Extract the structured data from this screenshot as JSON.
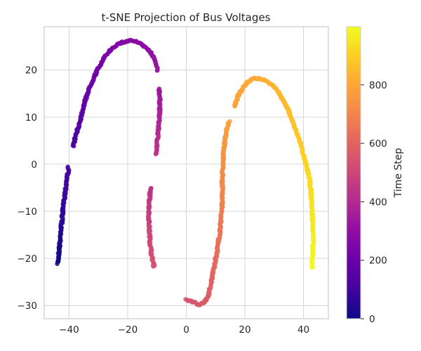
{
  "chart_data": {
    "type": "scatter",
    "title": "t-SNE Projection of Bus Voltages",
    "xlabel": "",
    "ylabel": "",
    "xlim": [
      -48.5,
      48.5
    ],
    "ylim": [
      -32.8,
      29.2
    ],
    "x_ticks": [
      -40,
      -20,
      0,
      20,
      40
    ],
    "y_ticks": [
      -30,
      -20,
      -10,
      0,
      10,
      20
    ],
    "x_tick_labels": [
      "−40",
      "−20",
      "0",
      "20",
      "40"
    ],
    "y_tick_labels": [
      "−30",
      "−20",
      "−10",
      "0",
      "10",
      "20"
    ],
    "grid": true,
    "colormap": "plasma",
    "colorbar": {
      "label": "Time Step",
      "range": [
        0,
        999
      ],
      "ticks": [
        0,
        200,
        400,
        600,
        800
      ],
      "tick_labels": [
        "0",
        "200",
        "400",
        "600",
        "800"
      ]
    },
    "color_variable": "Time Step",
    "series": [
      {
        "t_range": [
          0,
          120
        ],
        "points": [
          [
            -43.8,
            -21.0
          ],
          [
            -43.5,
            -18.5
          ],
          [
            -43.0,
            -16.0
          ],
          [
            -43.0,
            -14.5
          ],
          [
            -42.5,
            -12.5
          ],
          [
            -42.2,
            -10.5
          ],
          [
            -41.8,
            -8.0
          ],
          [
            -41.3,
            -5.5
          ],
          [
            -40.8,
            -3.0
          ],
          [
            -40.3,
            -1.5
          ],
          [
            -40.2,
            -0.7
          ]
        ]
      },
      {
        "t_range": [
          120,
          330
        ],
        "points": [
          [
            -38.5,
            3.8
          ],
          [
            -38.2,
            5.0
          ],
          [
            -37.0,
            7.5
          ],
          [
            -36.0,
            10.0
          ],
          [
            -35.0,
            12.5
          ],
          [
            -33.5,
            15.5
          ],
          [
            -31.5,
            18.5
          ],
          [
            -29.5,
            21.0
          ],
          [
            -27.5,
            23.0
          ],
          [
            -25.5,
            24.5
          ],
          [
            -23.5,
            25.5
          ],
          [
            -21.0,
            26.0
          ],
          [
            -19.0,
            26.3
          ],
          [
            -17.0,
            26.0
          ],
          [
            -15.0,
            25.4
          ],
          [
            -13.0,
            24.3
          ],
          [
            -11.0,
            22.5
          ],
          [
            -9.8,
            19.8
          ]
        ]
      },
      {
        "t_range": [
          330,
          430
        ],
        "points": [
          [
            -9.2,
            16.0
          ],
          [
            -9.0,
            13.0
          ],
          [
            -9.2,
            10.0
          ],
          [
            -9.6,
            7.0
          ],
          [
            -10.0,
            4.0
          ],
          [
            -10.3,
            2.3
          ]
        ]
      },
      {
        "t_range": [
          430,
          540
        ],
        "points": [
          [
            -12.2,
            -5.0
          ],
          [
            -12.6,
            -8.0
          ],
          [
            -12.8,
            -11.0
          ],
          [
            -12.6,
            -14.0
          ],
          [
            -12.3,
            -17.0
          ],
          [
            -11.8,
            -19.5
          ],
          [
            -11.0,
            -21.8
          ]
        ]
      },
      {
        "t_range": [
          540,
          780
        ],
        "points": [
          [
            0.0,
            -28.7
          ],
          [
            2.0,
            -29.2
          ],
          [
            4.0,
            -29.8
          ],
          [
            6.0,
            -29.5
          ],
          [
            7.5,
            -28.0
          ],
          [
            8.5,
            -25.0
          ],
          [
            9.5,
            -22.0
          ],
          [
            10.5,
            -18.5
          ],
          [
            11.3,
            -15.0
          ],
          [
            11.8,
            -12.0
          ],
          [
            12.2,
            -9.0
          ],
          [
            12.3,
            -6.0
          ],
          [
            12.3,
            -3.0
          ],
          [
            12.4,
            -1.0
          ],
          [
            12.6,
            1.5
          ],
          [
            13.0,
            4.0
          ],
          [
            13.5,
            6.5
          ],
          [
            14.6,
            9.0
          ]
        ]
      },
      {
        "t_range": [
          780,
          999
        ],
        "points": [
          [
            16.5,
            12.3
          ],
          [
            17.0,
            13.5
          ],
          [
            18.0,
            15.0
          ],
          [
            19.5,
            16.3
          ],
          [
            21.0,
            17.4
          ],
          [
            23.0,
            18.2
          ],
          [
            25.0,
            18.2
          ],
          [
            27.0,
            17.8
          ],
          [
            29.0,
            17.0
          ],
          [
            31.0,
            15.7
          ],
          [
            33.0,
            13.7
          ],
          [
            34.5,
            12.0
          ],
          [
            36.0,
            9.5
          ],
          [
            37.5,
            7.0
          ],
          [
            39.0,
            4.5
          ],
          [
            40.0,
            2.0
          ],
          [
            41.0,
            -0.5
          ],
          [
            42.0,
            -3.0
          ],
          [
            42.5,
            -5.5
          ],
          [
            42.8,
            -8.0
          ],
          [
            43.0,
            -10.5
          ],
          [
            43.3,
            -13.5
          ],
          [
            43.3,
            -16.5
          ],
          [
            43.0,
            -19.5
          ],
          [
            43.0,
            -22.0
          ]
        ]
      }
    ]
  }
}
